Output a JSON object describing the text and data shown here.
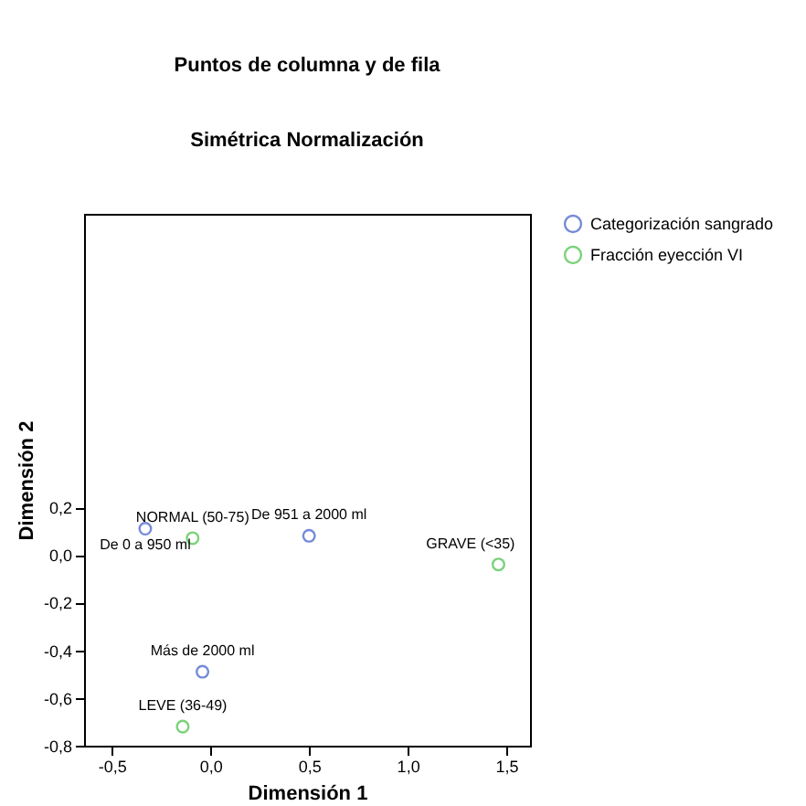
{
  "chart_data": {
    "type": "scatter",
    "title": "Puntos de columna y de fila",
    "subtitle": "Simétrica Normalización",
    "xlabel": "Dimensión 1",
    "ylabel": "Dimensión 2",
    "xlim": [
      -0.64,
      1.62
    ],
    "ylim": [
      -0.8,
      1.43
    ],
    "xticks": [
      {
        "value": -0.5,
        "label": "-0,5"
      },
      {
        "value": 0,
        "label": "0,0"
      },
      {
        "value": 0.5,
        "label": "0,5"
      },
      {
        "value": 1,
        "label": "1,0"
      },
      {
        "value": 1.5,
        "label": "1,5"
      }
    ],
    "yticks": [
      {
        "value": -0.8,
        "label": "-0,8"
      },
      {
        "value": -0.6,
        "label": "-0,6"
      },
      {
        "value": -0.4,
        "label": "-0,4"
      },
      {
        "value": -0.2,
        "label": "-0,2"
      },
      {
        "value": 0,
        "label": "0,0"
      },
      {
        "value": 0.2,
        "label": "0,2"
      }
    ],
    "series": [
      {
        "name": "Categorización sangrado",
        "color": "#3c5ac8",
        "x": [
          -0.33,
          0.5,
          -0.04
        ],
        "values": [
          0.11,
          0.08,
          -0.49
        ]
      },
      {
        "name": "Fracción eyección VI",
        "color": "#44c044",
        "x": [
          -0.09,
          1.46,
          -0.14
        ],
        "values": [
          0.07,
          -0.04,
          -0.72
        ]
      }
    ],
    "annotations": [
      {
        "text": "De 0 a 950 ml",
        "x": -0.33,
        "y": 0.11
      },
      {
        "text": "De 951 a 2000 ml",
        "x": 0.5,
        "y": 0.08
      },
      {
        "text": "Más de 2000 ml",
        "x": -0.04,
        "y": -0.49
      },
      {
        "text": "NORMAL (50-75)",
        "x": -0.09,
        "y": 0.07
      },
      {
        "text": "GRAVE (<35)",
        "x": 1.46,
        "y": -0.04
      },
      {
        "text": "LEVE (36-49)",
        "x": -0.14,
        "y": -0.72
      }
    ],
    "marker": "circle",
    "legend": "top right",
    "grid": false
  }
}
